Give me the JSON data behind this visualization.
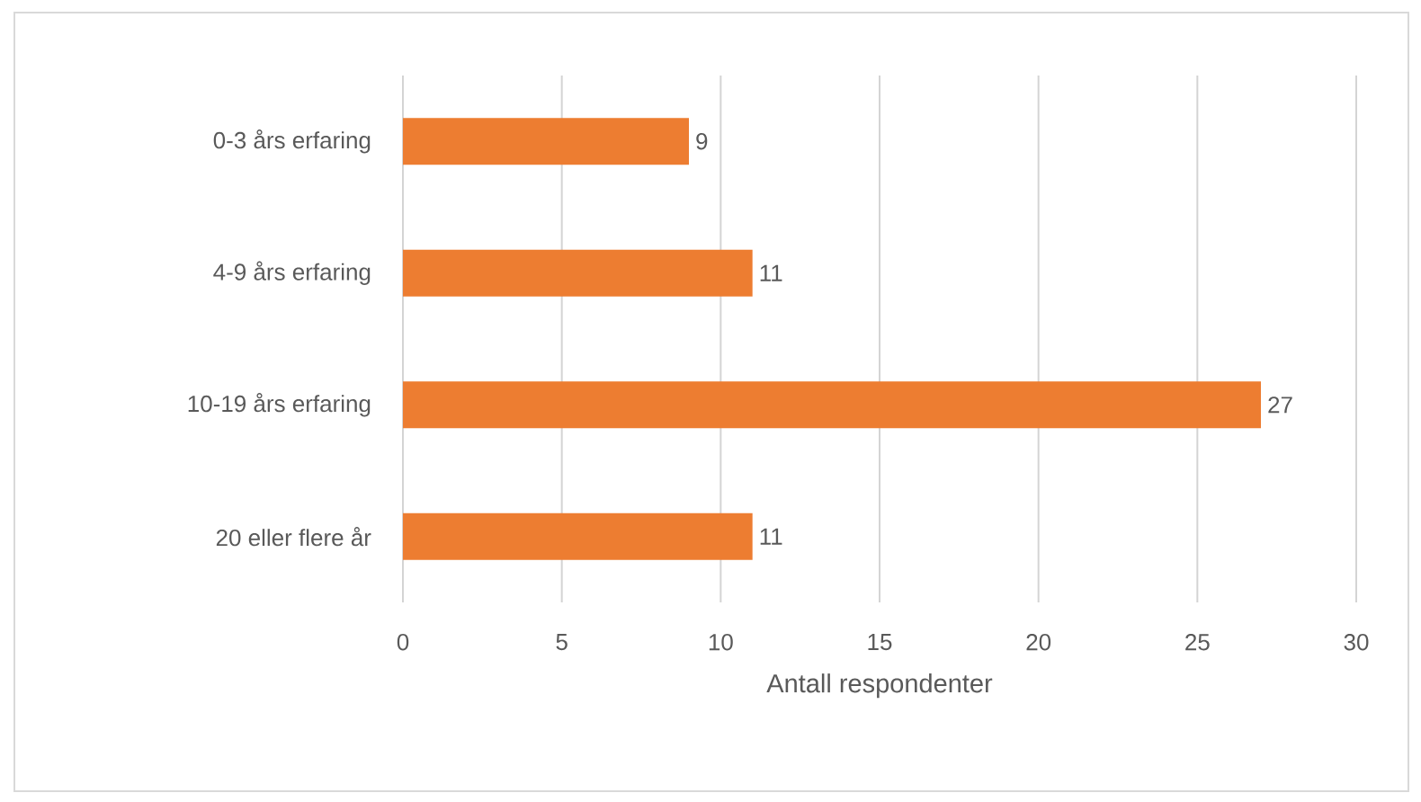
{
  "chart_data": {
    "type": "bar",
    "orientation": "horizontal",
    "xlabel": "Antall respondenter",
    "categories": [
      "0-3 års erfaring",
      "4-9 års erfaring",
      "10-19 års erfaring",
      "20 eller flere år"
    ],
    "values": [
      9,
      11,
      27,
      11
    ],
    "color": "#ed7d31",
    "xlim": [
      0,
      30
    ],
    "xticks": [
      0,
      5,
      10,
      15,
      20,
      25,
      30
    ],
    "grid": "x",
    "data_labels": true
  }
}
